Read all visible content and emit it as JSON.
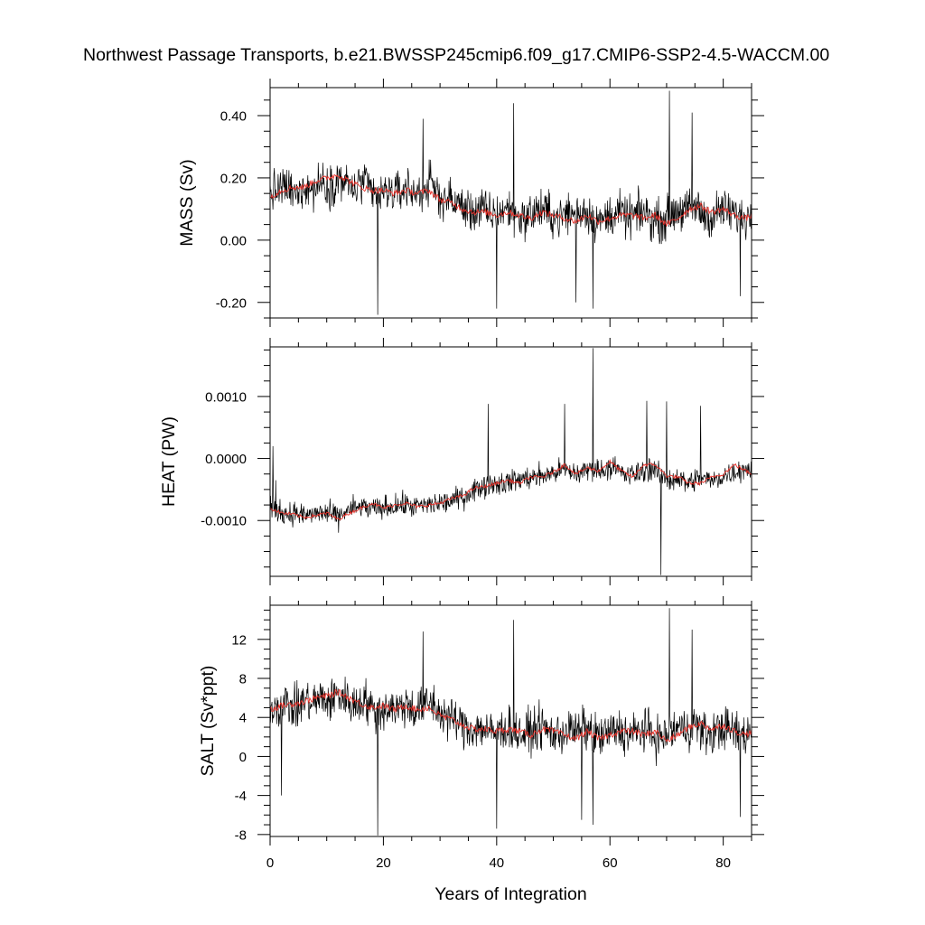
{
  "title": "Northwest Passage Transports, b.e21.BWSSP245cmip6.f09_g17.CMIP6-SSP2-4.5-WACCM.00",
  "colors": {
    "series": "#000000",
    "running_mean": "#e8312a",
    "frame": "#000000",
    "background": "#ffffff"
  },
  "chart_data": [
    {
      "type": "line",
      "ylabel": "MASS (Sv)",
      "xlabel": "",
      "xlim": [
        0,
        85
      ],
      "ylim": [
        -0.25,
        0.49
      ],
      "yticks": [
        -0.2,
        0.0,
        0.2,
        0.4
      ],
      "ytick_labels": [
        "-0.20",
        "0.00",
        "0.20",
        "0.40"
      ],
      "ytick_minor": 0.05,
      "xticks": [
        0,
        20,
        40,
        60,
        80
      ],
      "xtick_minor": 5,
      "grid": false,
      "series": [
        {
          "style": "thin-black",
          "x": [
            0,
            1.5,
            3,
            4.5,
            6,
            7.5,
            9,
            10.5,
            12,
            13.5,
            15,
            16.5,
            18,
            19.5,
            21,
            22.5,
            24,
            25.5,
            27,
            28.5,
            30,
            31.5,
            33,
            34.5,
            36,
            37.5,
            39,
            40.5,
            42,
            43.5,
            45,
            46.5,
            48,
            49.5,
            51,
            52.5,
            54,
            55.5,
            57,
            58.5,
            60,
            61.5,
            63,
            64.5,
            66,
            67.5,
            69,
            70.5,
            72,
            73.5,
            75,
            76.5,
            78,
            79.5,
            81,
            82.5,
            84,
            85
          ],
          "values": [
            0.15,
            0.16,
            0.17,
            0.14,
            0.18,
            0.16,
            0.19,
            0.17,
            0.2,
            0.18,
            0.16,
            0.19,
            0.15,
            0.14,
            0.16,
            0.15,
            0.17,
            0.15,
            0.16,
            0.18,
            0.14,
            0.13,
            0.12,
            0.1,
            0.09,
            0.1,
            0.08,
            0.09,
            0.1,
            0.08,
            0.07,
            0.09,
            0.1,
            0.08,
            0.07,
            0.09,
            0.08,
            0.1,
            0.07,
            0.06,
            0.08,
            0.09,
            0.07,
            0.08,
            0.09,
            0.07,
            0.06,
            0.08,
            0.1,
            0.09,
            0.11,
            0.08,
            0.07,
            0.1,
            0.09,
            0.08,
            0.07,
            0.09
          ],
          "noise": 0.08,
          "spikes": [
            [
              19,
              -0.24
            ],
            [
              27,
              0.39
            ],
            [
              43,
              0.44
            ],
            [
              70.5,
              0.48
            ],
            [
              74.5,
              0.41
            ],
            [
              40,
              -0.22
            ],
            [
              54,
              -0.2
            ],
            [
              57,
              -0.22
            ],
            [
              83,
              -0.18
            ]
          ]
        },
        {
          "style": "running-mean",
          "x": [
            0,
            2,
            4,
            6,
            8,
            10,
            12,
            14,
            16,
            18,
            20,
            22,
            24,
            26,
            28,
            30,
            32,
            34,
            36,
            38,
            40,
            42,
            44,
            46,
            48,
            50,
            52,
            54,
            56,
            58,
            60,
            62,
            64,
            66,
            68,
            70,
            72,
            74,
            76,
            78,
            80,
            82,
            84,
            85
          ],
          "values": [
            0.14,
            0.16,
            0.17,
            0.17,
            0.19,
            0.2,
            0.21,
            0.19,
            0.17,
            0.16,
            0.16,
            0.15,
            0.16,
            0.15,
            0.16,
            0.13,
            0.12,
            0.1,
            0.09,
            0.09,
            0.08,
            0.09,
            0.08,
            0.07,
            0.09,
            0.08,
            0.07,
            0.06,
            0.08,
            0.06,
            0.07,
            0.08,
            0.08,
            0.07,
            0.08,
            0.05,
            0.07,
            0.1,
            0.11,
            0.09,
            0.1,
            0.08,
            0.07,
            0.08
          ]
        }
      ]
    },
    {
      "type": "line",
      "ylabel": "HEAT (PW)",
      "xlabel": "",
      "xlim": [
        0,
        85
      ],
      "ylim": [
        -0.0019,
        0.0018
      ],
      "yticks": [
        -0.001,
        0.0,
        0.001
      ],
      "ytick_labels": [
        "-0.0010",
        "0.0000",
        "0.0010"
      ],
      "ytick_minor": 0.00025,
      "xticks": [
        0,
        20,
        40,
        60,
        80
      ],
      "xtick_minor": 5,
      "grid": false,
      "series": [
        {
          "style": "thin-black",
          "x": [
            0,
            1.5,
            3,
            4.5,
            6,
            7.5,
            9,
            10.5,
            12,
            13.5,
            15,
            16.5,
            18,
            19.5,
            21,
            22.5,
            24,
            25.5,
            27,
            28.5,
            30,
            31.5,
            33,
            34.5,
            36,
            37.5,
            39,
            40.5,
            42,
            43.5,
            45,
            46.5,
            48,
            49.5,
            51,
            52.5,
            54,
            55.5,
            57,
            58.5,
            60,
            61.5,
            63,
            64.5,
            66,
            67.5,
            69,
            70.5,
            72,
            73.5,
            75,
            76.5,
            78,
            79.5,
            81,
            82.5,
            84,
            85
          ],
          "values": [
            -0.0008,
            -0.00085,
            -0.0009,
            -0.00088,
            -0.00092,
            -0.0009,
            -0.00087,
            -0.0009,
            -0.00095,
            -0.00085,
            -0.0008,
            -0.00078,
            -0.00082,
            -0.0008,
            -0.00078,
            -0.00076,
            -0.00075,
            -0.00078,
            -0.00076,
            -0.00074,
            -0.00072,
            -0.0007,
            -0.00065,
            -0.0006,
            -0.0005,
            -0.00045,
            -0.0004,
            -0.0004,
            -0.00038,
            -0.00035,
            -0.00032,
            -0.0003,
            -0.00028,
            -0.00025,
            -0.0002,
            -0.0002,
            -0.00025,
            -0.0002,
            -0.00015,
            -0.0002,
            -0.00012,
            -0.0002,
            -0.00028,
            -0.00025,
            -0.0002,
            -0.00015,
            -0.0003,
            -0.00035,
            -0.0003,
            -0.0004,
            -0.00035,
            -0.0003,
            -0.00038,
            -0.0003,
            -0.00025,
            -0.0002,
            -0.00015,
            -0.0002
          ],
          "noise": 0.00022,
          "spikes": [
            [
              57,
              0.00178
            ],
            [
              69,
              -0.00188
            ],
            [
              38.5,
              0.00088
            ],
            [
              52,
              0.00088
            ],
            [
              66.5,
              0.00093
            ],
            [
              70,
              0.00092
            ],
            [
              76,
              0.00085
            ],
            [
              1,
              -0.00035
            ],
            [
              0.5,
              0.0002
            ]
          ]
        },
        {
          "style": "running-mean",
          "x": [
            0,
            2,
            4,
            6,
            8,
            10,
            12,
            14,
            16,
            18,
            20,
            22,
            24,
            26,
            28,
            30,
            32,
            34,
            36,
            38,
            40,
            42,
            44,
            46,
            48,
            50,
            52,
            54,
            56,
            58,
            60,
            62,
            64,
            66,
            68,
            70,
            72,
            74,
            76,
            78,
            80,
            82,
            84,
            85
          ],
          "values": [
            -0.0008,
            -0.00088,
            -0.0009,
            -0.00095,
            -0.00092,
            -0.00088,
            -0.00098,
            -0.00088,
            -0.0008,
            -0.00072,
            -0.0008,
            -0.00075,
            -0.00072,
            -0.00078,
            -0.00075,
            -0.00072,
            -0.00065,
            -0.0006,
            -0.00048,
            -0.00045,
            -0.0004,
            -0.00035,
            -0.0004,
            -0.0003,
            -0.0003,
            -0.00022,
            -0.0001,
            -0.00025,
            -0.00015,
            -0.0002,
            -5e-05,
            -0.0002,
            -0.0003,
            -0.0001,
            -0.0001,
            -0.00028,
            -0.0003,
            -0.0004,
            -0.0004,
            -0.0003,
            -0.00025,
            -0.0001,
            -0.0002,
            -0.00025
          ]
        }
      ]
    },
    {
      "type": "line",
      "ylabel": "SALT (Sv*ppt)",
      "xlabel": "Years of Integration",
      "xlim": [
        0,
        85
      ],
      "ylim": [
        -8.2,
        15.5
      ],
      "yticks": [
        -8,
        -4,
        0,
        4,
        8,
        12
      ],
      "ytick_labels": [
        "-8",
        "-4",
        "0",
        "4",
        "8",
        "12"
      ],
      "ytick_minor": 1,
      "xticks": [
        0,
        20,
        40,
        60,
        80
      ],
      "xtick_labels": [
        "0",
        "20",
        "40",
        "60",
        "80"
      ],
      "xtick_minor": 5,
      "grid": false,
      "series": [
        {
          "style": "thin-black",
          "x": [
            0,
            1.5,
            3,
            4.5,
            6,
            7.5,
            9,
            10.5,
            12,
            13.5,
            15,
            16.5,
            18,
            19.5,
            21,
            22.5,
            24,
            25.5,
            27,
            28.5,
            30,
            31.5,
            33,
            34.5,
            36,
            37.5,
            39,
            40.5,
            42,
            43.5,
            45,
            46.5,
            48,
            49.5,
            51,
            52.5,
            54,
            55.5,
            57,
            58.5,
            60,
            61.5,
            63,
            64.5,
            66,
            67.5,
            69,
            70.5,
            72,
            73.5,
            75,
            76.5,
            78,
            79.5,
            81,
            82.5,
            84,
            85
          ],
          "values": [
            5,
            5.2,
            5.5,
            4.8,
            5.8,
            5.4,
            6,
            5.6,
            6.4,
            5.8,
            5.2,
            6,
            4.8,
            4.6,
            5.2,
            4.8,
            5.4,
            4.8,
            5,
            5.6,
            4.4,
            4,
            3.6,
            3,
            2.8,
            3,
            2.4,
            2.6,
            3,
            2.4,
            2.2,
            2.8,
            3,
            2.4,
            2.2,
            2.8,
            2.4,
            3,
            2.2,
            2,
            2.4,
            2.8,
            2.2,
            2.4,
            2.8,
            2.2,
            1.8,
            2.4,
            3,
            2.8,
            3.4,
            2.4,
            2.2,
            3,
            2.8,
            2.4,
            2.2,
            2.6
          ],
          "noise": 2.6,
          "spikes": [
            [
              19,
              -8.1
            ],
            [
              43,
              14
            ],
            [
              70.5,
              15.2
            ],
            [
              74.5,
              13
            ],
            [
              27,
              12.8
            ],
            [
              40,
              -7.4
            ],
            [
              55,
              -6.5
            ],
            [
              57,
              -7
            ],
            [
              83,
              -6.2
            ],
            [
              2,
              -4
            ]
          ]
        },
        {
          "style": "running-mean",
          "x": [
            0,
            2,
            4,
            6,
            8,
            10,
            12,
            14,
            16,
            18,
            20,
            22,
            24,
            26,
            28,
            30,
            32,
            34,
            36,
            38,
            40,
            42,
            44,
            46,
            48,
            50,
            52,
            54,
            56,
            58,
            60,
            62,
            64,
            66,
            68,
            70,
            72,
            74,
            76,
            78,
            80,
            82,
            84,
            85
          ],
          "values": [
            4.8,
            5.2,
            5.4,
            5.6,
            6,
            6.2,
            6.6,
            6,
            5.4,
            5,
            5.2,
            4.8,
            5.2,
            4.8,
            5,
            4.2,
            3.8,
            3.2,
            2.8,
            2.8,
            2.6,
            2.8,
            2.6,
            2.2,
            2.8,
            2.6,
            2.2,
            1.8,
            2.6,
            1.8,
            2.2,
            2.6,
            2.6,
            2.2,
            2.6,
            1.6,
            2.2,
            3,
            3.4,
            2.8,
            3.2,
            2.6,
            2.2,
            2.6
          ]
        }
      ]
    }
  ]
}
